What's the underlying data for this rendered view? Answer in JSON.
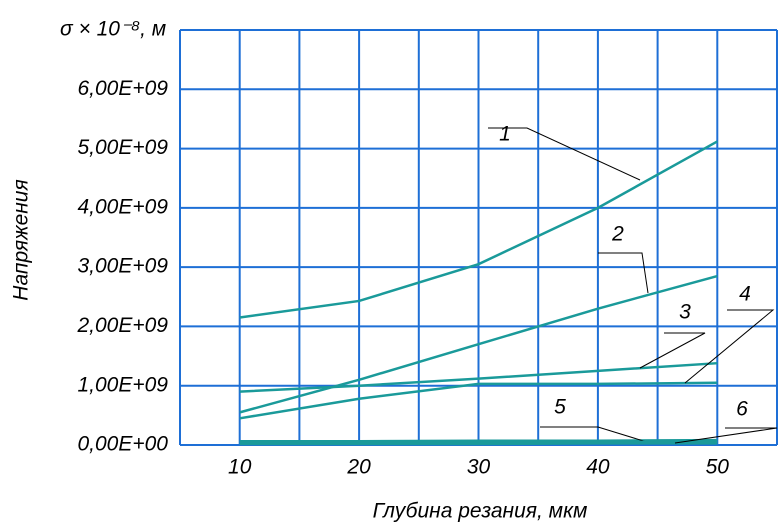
{
  "chart_data": {
    "type": "line",
    "y_unit_label": "σ × 10⁻⁸, м",
    "y_label": "Напряжения",
    "x_label": "Глубина резания, мкм",
    "x": [
      10,
      20,
      30,
      40,
      50
    ],
    "series": [
      {
        "name": "1",
        "color": "#1a9a9a",
        "values": [
          2150000000,
          2430000000,
          3050000000,
          4000000000,
          5120000000
        ]
      },
      {
        "name": "2",
        "color": "#1a9a9a",
        "values": [
          550000000,
          1100000000,
          1700000000,
          2300000000,
          2850000000
        ]
      },
      {
        "name": "3",
        "color": "#1a9a9a",
        "values": [
          900000000,
          1000000000,
          1120000000,
          1250000000,
          1380000000
        ]
      },
      {
        "name": "4",
        "color": "#1a9a9a",
        "values": [
          450000000,
          780000000,
          1030000000,
          1030000000,
          1050000000
        ]
      },
      {
        "name": "5",
        "color": "#1a9a9a",
        "values": [
          50000000,
          50000000,
          60000000,
          60000000,
          70000000
        ]
      },
      {
        "name": "6",
        "color": "#1a9a9a",
        "values": [
          30000000,
          30000000,
          30000000,
          40000000,
          40000000
        ]
      }
    ],
    "xlim": [
      5,
      55
    ],
    "ylim": [
      0,
      7000000000
    ],
    "xticks": [
      10,
      20,
      30,
      40,
      50
    ],
    "xgrid": [
      5,
      10,
      15,
      20,
      25,
      30,
      35,
      40,
      45,
      50,
      55
    ],
    "yticks": [
      {
        "value": 0,
        "label": "0,00E+00"
      },
      {
        "value": 1000000000,
        "label": "1,00E+09"
      },
      {
        "value": 2000000000,
        "label": "2,00E+09"
      },
      {
        "value": 3000000000,
        "label": "3,00E+09"
      },
      {
        "value": 4000000000,
        "label": "4,00E+09"
      },
      {
        "value": 5000000000,
        "label": "5,00E+09"
      },
      {
        "value": 6000000000,
        "label": "6,00E+09"
      }
    ],
    "ygrid": [
      0,
      1000000000,
      2000000000,
      3000000000,
      4000000000,
      5000000000,
      6000000000,
      7000000000
    ],
    "grid": true,
    "grid_color": "#1e6fd6"
  }
}
